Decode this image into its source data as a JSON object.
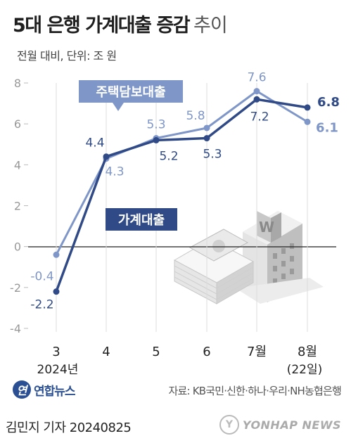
{
  "header": {
    "title_main": "5대 은행 가계대출 증감",
    "title_sub": "추이",
    "unit": "전월 대비, 단위: 조 원"
  },
  "chart_data": {
    "type": "line",
    "categories": [
      "3",
      "4",
      "5",
      "6",
      "7월",
      "8월"
    ],
    "category_sublabels": [
      "2024년",
      "",
      "",
      "",
      "",
      "(22일)"
    ],
    "ylim": [
      -4,
      8
    ],
    "yticks": [
      -4,
      -2,
      0,
      2,
      4,
      6,
      8
    ],
    "grid": false,
    "series": [
      {
        "name": "주택담보대출",
        "color": "#7f96c8",
        "values": [
          -0.4,
          4.3,
          5.3,
          5.8,
          7.6,
          6.1
        ],
        "labels": [
          "-0.4",
          "4.3",
          "5.3",
          "5.8",
          "7.6",
          "6.1"
        ]
      },
      {
        "name": "가계대출",
        "color": "#2f4a86",
        "values": [
          -2.2,
          4.4,
          5.2,
          5.3,
          7.2,
          6.8
        ],
        "labels": [
          "-2.2",
          "4.4",
          "5.2",
          "5.3",
          "7.2",
          "6.8"
        ]
      }
    ]
  },
  "footer": {
    "logo_mark": "연",
    "logo_text": "연합뉴스",
    "source": "자료: KB국민·신한·하나·우리·NH농협은행",
    "byline": "김민지 기자  20240825",
    "agency_mark": "Y",
    "agency_text": "YONHAP NEWS"
  }
}
